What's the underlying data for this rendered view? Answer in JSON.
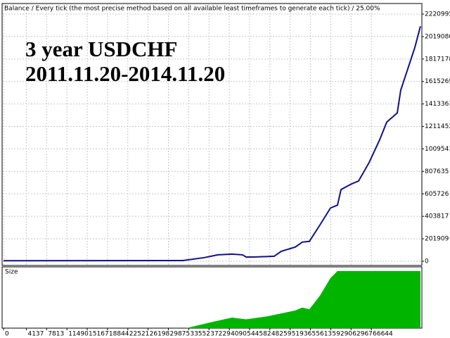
{
  "chart_data": [
    {
      "type": "line",
      "title": "Balance / Every tick (the most precise method based on all available least timeframes to generate each tick) / 25.00%",
      "annotations": [
        "3 year USDCHF",
        "2011.11.20-2014.11.20"
      ],
      "x": [
        0,
        32480,
        36300,
        38850,
        41400,
        43310,
        43950,
        45220,
        49040,
        50320,
        52870,
        54140,
        55410,
        57320,
        59240,
        60510,
        61150,
        63060,
        64330,
        66240,
        68150,
        69430,
        71340,
        71970,
        73250,
        74520,
        75540
      ],
      "series": [
        {
          "color": "#10108c",
          "values": [
            5000,
            6000,
            31900,
            57400,
            63800,
            57400,
            38300,
            38300,
            44700,
            89300,
            127600,
            172000,
            178600,
            325000,
            478500,
            504000,
            644000,
            695000,
            721000,
            886800,
            1091000,
            1250000,
            1333000,
            1537600,
            1729000,
            1920000,
            2112000
          ]
        }
      ],
      "xlim": [
        -255,
        75800
      ],
      "ylim": [
        -38000,
        2316000
      ],
      "yticks": [
        0,
        201909,
        403817,
        605726,
        807635,
        1009543,
        1211452,
        1413361,
        1615269,
        1817178,
        2019086,
        2220995
      ],
      "grid": true
    },
    {
      "type": "area",
      "title": "Size",
      "x": [
        33120,
        37580,
        41400,
        43950,
        47770,
        50320,
        52870,
        54140,
        55410,
        57320,
        59240,
        60510,
        75540
      ],
      "values": [
        0,
        10,
        18,
        15,
        20,
        25,
        30,
        35,
        32,
        55,
        85,
        97,
        97
      ],
      "color": "#00b400",
      "xlim": [
        -255,
        75800
      ],
      "ylim": [
        0,
        104
      ],
      "xticks": [
        0,
        4137,
        7813,
        11490,
        15167,
        18844,
        22521,
        26198,
        29875,
        33552,
        37229,
        40905,
        44582,
        48259,
        51936,
        55613,
        59290,
        62967,
        66644
      ]
    }
  ]
}
